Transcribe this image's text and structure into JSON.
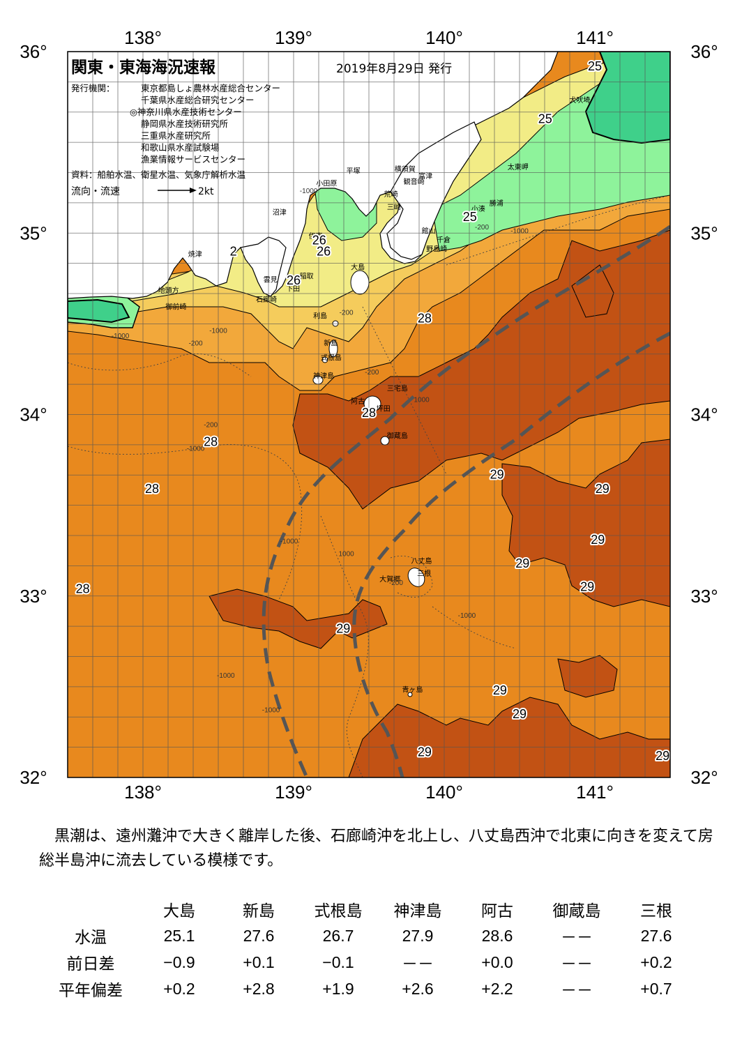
{
  "map": {
    "title": "関東・東海海況速報",
    "date": "2019年8月29日 発行",
    "issuer_label": "発行機関：",
    "issuers": [
      "東京都島しょ農林水産総合センター",
      "千葉県水産総合研究センター",
      "◎神奈川県水産技術センター",
      "静岡県水産技術研究所",
      "三重県水産研究所",
      "和歌山県水産試験場",
      "漁業情報サービスセンター"
    ],
    "source": "資料：船舶水温、衛星水温、気象庁解析水温",
    "current_label": "流向・流速",
    "current_scale": "2kt",
    "lon_labels": [
      "138°",
      "139°",
      "140°",
      "141°"
    ],
    "lat_labels": [
      "36°",
      "35°",
      "34°",
      "33°",
      "32°"
    ],
    "lon_range": [
      137.5,
      141.5
    ],
    "lat_range": [
      32,
      36
    ],
    "colors": {
      "sea_28": "#e8891e",
      "sea_29": "#c25214",
      "sea_27": "#f2a83b",
      "sea_26": "#f5cc5c",
      "sea_25": "#f2ec86",
      "sea_24": "#8ef39b",
      "cold": "#3fd08a",
      "land": "#ffffff",
      "kuroshio_axis": "#555555"
    },
    "places": [
      {
        "name": "犬吠埼",
        "lon": 140.83,
        "lat": 35.72
      },
      {
        "name": "太東岬",
        "lon": 140.42,
        "lat": 35.35
      },
      {
        "name": "勝浦",
        "lon": 140.3,
        "lat": 35.15
      },
      {
        "name": "小湊",
        "lon": 140.18,
        "lat": 35.12
      },
      {
        "name": "富津",
        "lon": 139.83,
        "lat": 35.3
      },
      {
        "name": "観音崎",
        "lon": 139.73,
        "lat": 35.27
      },
      {
        "name": "横須賀",
        "lon": 139.67,
        "lat": 35.34
      },
      {
        "name": "平塚",
        "lon": 139.35,
        "lat": 35.33
      },
      {
        "name": "荒崎",
        "lon": 139.6,
        "lat": 35.2
      },
      {
        "name": "三崎",
        "lon": 139.62,
        "lat": 35.13
      },
      {
        "name": "小田原",
        "lon": 139.15,
        "lat": 35.26
      },
      {
        "name": "館山",
        "lon": 139.85,
        "lat": 35.0
      },
      {
        "name": "千倉",
        "lon": 139.95,
        "lat": 34.95
      },
      {
        "name": "野島崎",
        "lon": 139.88,
        "lat": 34.9
      },
      {
        "name": "大島",
        "lon": 139.38,
        "lat": 34.8
      },
      {
        "name": "伊東",
        "lon": 139.1,
        "lat": 34.97
      },
      {
        "name": "沼津",
        "lon": 138.86,
        "lat": 35.1
      },
      {
        "name": "焼津",
        "lon": 138.3,
        "lat": 34.87
      },
      {
        "name": "稲取",
        "lon": 139.04,
        "lat": 34.75
      },
      {
        "name": "下田",
        "lon": 138.95,
        "lat": 34.68
      },
      {
        "name": "雲見",
        "lon": 138.8,
        "lat": 34.73
      },
      {
        "name": "石廊崎",
        "lon": 138.75,
        "lat": 34.62
      },
      {
        "name": "地頭方",
        "lon": 138.1,
        "lat": 34.67
      },
      {
        "name": "御前崎",
        "lon": 138.15,
        "lat": 34.58
      },
      {
        "name": "利島",
        "lon": 139.13,
        "lat": 34.53
      },
      {
        "name": "新島",
        "lon": 139.2,
        "lat": 34.38
      },
      {
        "name": "式根島",
        "lon": 139.18,
        "lat": 34.3
      },
      {
        "name": "神津島",
        "lon": 139.13,
        "lat": 34.2
      },
      {
        "name": "三宅島",
        "lon": 139.62,
        "lat": 34.13
      },
      {
        "name": "阿古",
        "lon": 139.38,
        "lat": 34.06
      },
      {
        "name": "坪田",
        "lon": 139.55,
        "lat": 34.02
      },
      {
        "name": "御蔵島",
        "lon": 139.62,
        "lat": 33.87
      },
      {
        "name": "八丈島",
        "lon": 139.78,
        "lat": 33.18
      },
      {
        "name": "三根",
        "lon": 139.82,
        "lat": 33.11
      },
      {
        "name": "大賀郷",
        "lon": 139.57,
        "lat": 33.08
      },
      {
        "name": "青ヶ島",
        "lon": 139.72,
        "lat": 32.47
      }
    ],
    "temperature_labels": [
      {
        "value": "25",
        "lon": 141.0,
        "lat": 35.92
      },
      {
        "value": "25",
        "lon": 140.67,
        "lat": 35.63
      },
      {
        "value": "25",
        "lon": 140.17,
        "lat": 35.09
      },
      {
        "value": "26",
        "lon": 139.17,
        "lat": 34.96
      },
      {
        "value": "26",
        "lon": 139.2,
        "lat": 34.9
      },
      {
        "value": "26",
        "lon": 139.0,
        "lat": 34.74
      },
      {
        "value": "2",
        "lon": 138.6,
        "lat": 34.9
      },
      {
        "value": "28",
        "lon": 139.87,
        "lat": 34.53
      },
      {
        "value": "28",
        "lon": 139.5,
        "lat": 34.01
      },
      {
        "value": "28",
        "lon": 138.45,
        "lat": 33.85
      },
      {
        "value": "28",
        "lon": 138.06,
        "lat": 33.59
      },
      {
        "value": "28",
        "lon": 137.6,
        "lat": 33.04
      },
      {
        "value": "29",
        "lon": 140.35,
        "lat": 33.67
      },
      {
        "value": "29",
        "lon": 141.05,
        "lat": 33.59
      },
      {
        "value": "29",
        "lon": 141.02,
        "lat": 33.31
      },
      {
        "value": "29",
        "lon": 140.52,
        "lat": 33.18
      },
      {
        "value": "29",
        "lon": 140.95,
        "lat": 33.05
      },
      {
        "value": "29",
        "lon": 139.33,
        "lat": 32.82
      },
      {
        "value": "29",
        "lon": 140.37,
        "lat": 32.48
      },
      {
        "value": "29",
        "lon": 140.5,
        "lat": 32.35
      },
      {
        "value": "29",
        "lon": 139.87,
        "lat": 32.14
      },
      {
        "value": "29",
        "lon": 141.45,
        "lat": 32.12
      }
    ],
    "contour_labels": [
      {
        "value": "-1000",
        "lon": 138.35,
        "lat": 33.8
      },
      {
        "value": "-1000",
        "lon": 138.97,
        "lat": 33.29
      },
      {
        "value": "-1000",
        "lon": 138.55,
        "lat": 32.55
      },
      {
        "value": "-1000",
        "lon": 138.85,
        "lat": 32.36
      },
      {
        "value": "1000",
        "lon": 139.35,
        "lat": 33.22
      },
      {
        "value": "-1000",
        "lon": 140.15,
        "lat": 32.88
      },
      {
        "value": "-200",
        "lon": 139.68,
        "lat": 33.06
      },
      {
        "value": "-1000",
        "lon": 140.5,
        "lat": 35.0
      },
      {
        "value": "-200",
        "lon": 140.25,
        "lat": 35.02
      },
      {
        "value": "-1000",
        "lon": 139.1,
        "lat": 35.22
      },
      {
        "value": "-200",
        "lon": 139.35,
        "lat": 34.55
      },
      {
        "value": "1000",
        "lon": 139.85,
        "lat": 34.07
      },
      {
        "value": "-1000",
        "lon": 138.5,
        "lat": 34.45
      },
      {
        "value": "-200",
        "lon": 138.35,
        "lat": 34.38
      },
      {
        "value": "-1000",
        "lon": 137.85,
        "lat": 34.42
      },
      {
        "value": "-200",
        "lon": 138.45,
        "lat": 33.93
      },
      {
        "value": "-200",
        "lon": 139.52,
        "lat": 34.22
      }
    ]
  },
  "description": "黒潮は、遠州灘沖で大きく離岸した後、石廊崎沖を北上し、八丈島西沖で北東に向きを変えて房総半島沖に流去している模様です。",
  "table": {
    "stations": [
      "大島",
      "新島",
      "式根島",
      "神津島",
      "阿古",
      "御蔵島",
      "三根"
    ],
    "rows": [
      {
        "label": "水温",
        "values": [
          "25.1",
          "27.6",
          "26.7",
          "27.9",
          "28.6",
          "－－",
          "27.6"
        ]
      },
      {
        "label": "前日差",
        "values": [
          "−0.9",
          "+0.1",
          "−0.1",
          "－－",
          "+0.0",
          "－－",
          "+0.2"
        ]
      },
      {
        "label": "平年偏差",
        "values": [
          "+0.2",
          "+2.8",
          "+1.9",
          "+2.6",
          "+2.2",
          "－－",
          "+0.7"
        ]
      }
    ]
  }
}
